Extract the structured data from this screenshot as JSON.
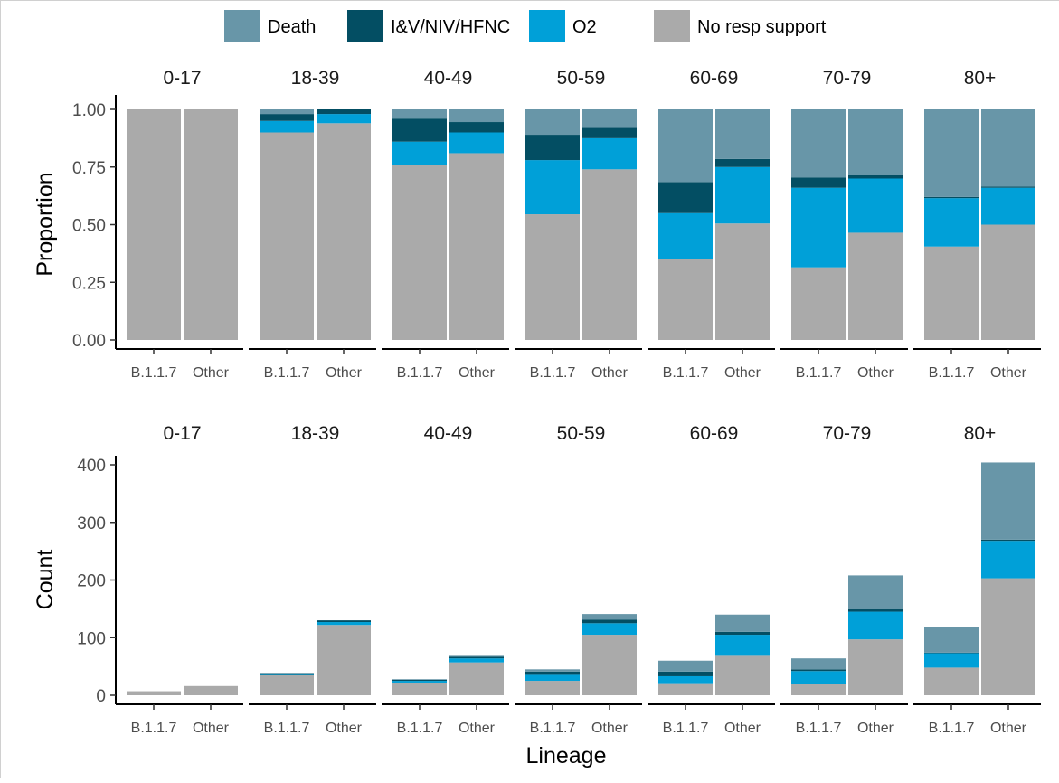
{
  "legend": {
    "items": [
      {
        "label": "Death",
        "color": "#6896a8"
      },
      {
        "label": "I&V/NIV/HFNC",
        "color": "#034e63"
      },
      {
        "label": "O2",
        "color": "#00a0d8"
      },
      {
        "label": "No resp support",
        "color": "#aaaaaa"
      }
    ]
  },
  "axis": {
    "x_label": "Lineage",
    "top_y_label": "Proportion",
    "bottom_y_label": "Count"
  },
  "chart_data": [
    {
      "type": "bar",
      "stacked": true,
      "facets": [
        "0-17",
        "18-39",
        "40-49",
        "50-59",
        "60-69",
        "70-79",
        "80+"
      ],
      "categories": [
        "B.1.1.7",
        "Other"
      ],
      "ylabel": "Proportion",
      "ylim": [
        0,
        1
      ],
      "yticks": [
        "0.00",
        "0.25",
        "0.50",
        "0.75",
        "1.00"
      ],
      "series": [
        {
          "name": "No resp support",
          "values": [
            [
              1.0,
              1.0
            ],
            [
              0.9,
              0.94
            ],
            [
              0.76,
              0.81
            ],
            [
              0.545,
              0.74
            ],
            [
              0.35,
              0.505
            ],
            [
              0.315,
              0.465
            ],
            [
              0.405,
              0.5
            ]
          ]
        },
        {
          "name": "O2",
          "values": [
            [
              0,
              0
            ],
            [
              0.05,
              0.04
            ],
            [
              0.1,
              0.09
            ],
            [
              0.235,
              0.135
            ],
            [
              0.2,
              0.245
            ],
            [
              0.345,
              0.235
            ],
            [
              0.21,
              0.16
            ]
          ]
        },
        {
          "name": "I&V/NIV/HFNC",
          "values": [
            [
              0,
              0
            ],
            [
              0.03,
              0.02
            ],
            [
              0.1,
              0.045
            ],
            [
              0.11,
              0.045
            ],
            [
              0.135,
              0.035
            ],
            [
              0.045,
              0.015
            ],
            [
              0.005,
              0.005
            ]
          ]
        },
        {
          "name": "Death",
          "values": [
            [
              0,
              0
            ],
            [
              0.02,
              0
            ],
            [
              0.04,
              0.055
            ],
            [
              0.11,
              0.08
            ],
            [
              0.315,
              0.215
            ],
            [
              0.295,
              0.285
            ],
            [
              0.38,
              0.335
            ]
          ]
        }
      ]
    },
    {
      "type": "bar",
      "stacked": true,
      "facets": [
        "0-17",
        "18-39",
        "40-49",
        "50-59",
        "60-69",
        "70-79",
        "80+"
      ],
      "categories": [
        "B.1.1.7",
        "Other"
      ],
      "xlabel": "Lineage",
      "ylabel": "Count",
      "ylim": [
        0,
        425
      ],
      "yticks": [
        "0",
        "100",
        "200",
        "300",
        "400"
      ],
      "series": [
        {
          "name": "No resp support",
          "values": [
            [
              7,
              16
            ],
            [
              35,
              122
            ],
            [
              22,
              57
            ],
            [
              25,
              105
            ],
            [
              21,
              70
            ],
            [
              20,
              97
            ],
            [
              48,
              203
            ]
          ]
        },
        {
          "name": "O2",
          "values": [
            [
              0,
              0
            ],
            [
              2,
              5
            ],
            [
              3,
              7
            ],
            [
              12,
              20
            ],
            [
              12,
              35
            ],
            [
              22,
              48
            ],
            [
              25,
              65
            ]
          ]
        },
        {
          "name": "I&V/NIV/HFNC",
          "values": [
            [
              0,
              0
            ],
            [
              1,
              3
            ],
            [
              2,
              3
            ],
            [
              4,
              6
            ],
            [
              8,
              5
            ],
            [
              3,
              4
            ],
            [
              1,
              2
            ]
          ]
        },
        {
          "name": "Death",
          "values": [
            [
              0,
              0
            ],
            [
              1,
              0
            ],
            [
              1,
              3
            ],
            [
              4,
              10
            ],
            [
              19,
              30
            ],
            [
              19,
              59
            ],
            [
              44,
              134
            ]
          ]
        }
      ]
    }
  ]
}
